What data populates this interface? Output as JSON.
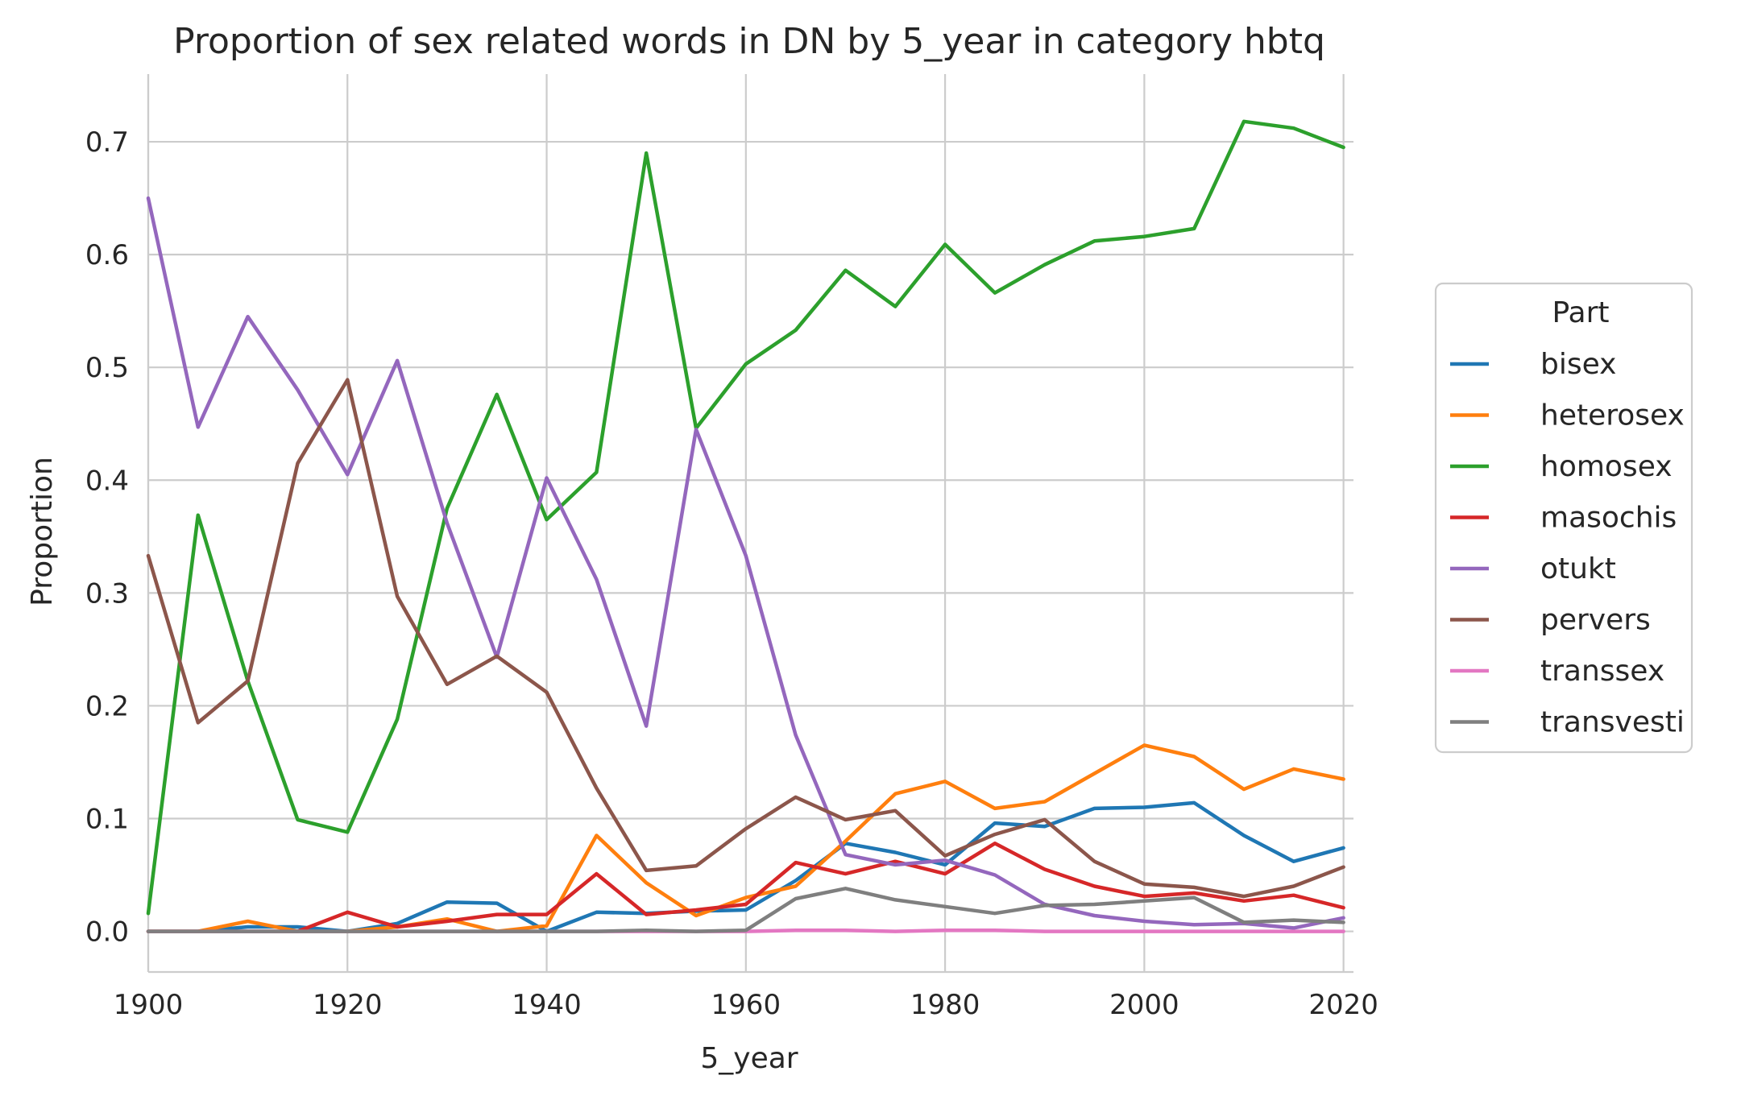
{
  "chart_data": {
    "type": "line",
    "title": "Proportion of sex related words in DN by 5_year in category hbtq",
    "xlabel": "5_year",
    "ylabel": "Proportion",
    "xlim": [
      1900,
      2021
    ],
    "ylim": [
      -0.036,
      0.76
    ],
    "xticks": [
      1900,
      1920,
      1940,
      1960,
      1980,
      2000,
      2020
    ],
    "yticks": [
      0.0,
      0.1,
      0.2,
      0.3,
      0.4,
      0.5,
      0.6,
      0.7
    ],
    "grid": true,
    "legend": {
      "title": "Part",
      "position": "right"
    },
    "x": [
      1900,
      1905,
      1910,
      1915,
      1920,
      1925,
      1930,
      1935,
      1940,
      1945,
      1950,
      1955,
      1960,
      1965,
      1970,
      1975,
      1980,
      1985,
      1990,
      1995,
      2000,
      2005,
      2010,
      2015,
      2020
    ],
    "series": [
      {
        "name": "bisex",
        "color": "#1f77b4",
        "values": [
          0.0,
          0.0,
          0.004,
          0.004,
          0.0,
          0.007,
          0.026,
          0.025,
          0.0,
          0.017,
          0.016,
          0.018,
          0.019,
          0.045,
          0.078,
          0.07,
          0.059,
          0.096,
          0.093,
          0.109,
          0.11,
          0.114,
          0.085,
          0.062,
          0.074
        ]
      },
      {
        "name": "heterosex",
        "color": "#ff7f0e",
        "values": [
          0.0,
          0.0,
          0.009,
          0.0,
          0.0,
          0.004,
          0.011,
          0.0,
          0.005,
          0.085,
          0.043,
          0.014,
          0.03,
          0.04,
          0.08,
          0.122,
          0.133,
          0.109,
          0.115,
          0.14,
          0.165,
          0.155,
          0.126,
          0.144,
          0.135
        ]
      },
      {
        "name": "homosex",
        "color": "#2ca02c",
        "values": [
          0.016,
          0.369,
          0.222,
          0.099,
          0.088,
          0.188,
          0.375,
          0.476,
          0.365,
          0.407,
          0.69,
          0.446,
          0.503,
          0.533,
          0.586,
          0.554,
          0.609,
          0.566,
          0.591,
          0.612,
          0.616,
          0.623,
          0.718,
          0.712,
          0.695
        ]
      },
      {
        "name": "masochis",
        "color": "#d62728",
        "values": [
          0.0,
          0.0,
          0.0,
          0.0,
          0.017,
          0.004,
          0.009,
          0.015,
          0.015,
          0.051,
          0.015,
          0.019,
          0.024,
          0.061,
          0.051,
          0.062,
          0.051,
          0.078,
          0.055,
          0.04,
          0.031,
          0.034,
          0.027,
          0.032,
          0.021
        ]
      },
      {
        "name": "otukt",
        "color": "#9467bd",
        "values": [
          0.65,
          0.447,
          0.545,
          0.48,
          0.405,
          0.506,
          0.362,
          0.243,
          0.402,
          0.312,
          0.182,
          0.445,
          0.333,
          0.174,
          0.068,
          0.059,
          0.063,
          0.05,
          0.024,
          0.014,
          0.009,
          0.006,
          0.007,
          0.003,
          0.012
        ]
      },
      {
        "name": "pervers",
        "color": "#8c564b",
        "values": [
          0.333,
          0.185,
          0.222,
          0.415,
          0.489,
          0.297,
          0.219,
          0.244,
          0.212,
          0.127,
          0.054,
          0.058,
          0.091,
          0.119,
          0.099,
          0.107,
          0.067,
          0.086,
          0.099,
          0.062,
          0.042,
          0.039,
          0.031,
          0.04,
          0.057
        ]
      },
      {
        "name": "transsex",
        "color": "#e377c2",
        "values": [
          0.0,
          0.0,
          0.0,
          0.0,
          0.0,
          0.0,
          0.0,
          0.0,
          0.0,
          0.0,
          0.0,
          0.0,
          0.0,
          0.001,
          0.001,
          0.0,
          0.001,
          0.001,
          0.0,
          0.0,
          0.0,
          0.0,
          0.0,
          0.0,
          0.0
        ]
      },
      {
        "name": "transvesti",
        "color": "#7f7f7f",
        "values": [
          0.0,
          0.0,
          0.0,
          0.0,
          0.0,
          0.0,
          0.0,
          0.0,
          0.0,
          0.0,
          0.001,
          0.0,
          0.001,
          0.029,
          0.038,
          0.028,
          0.022,
          0.016,
          0.023,
          0.024,
          0.027,
          0.03,
          0.008,
          0.01,
          0.008
        ]
      }
    ]
  }
}
